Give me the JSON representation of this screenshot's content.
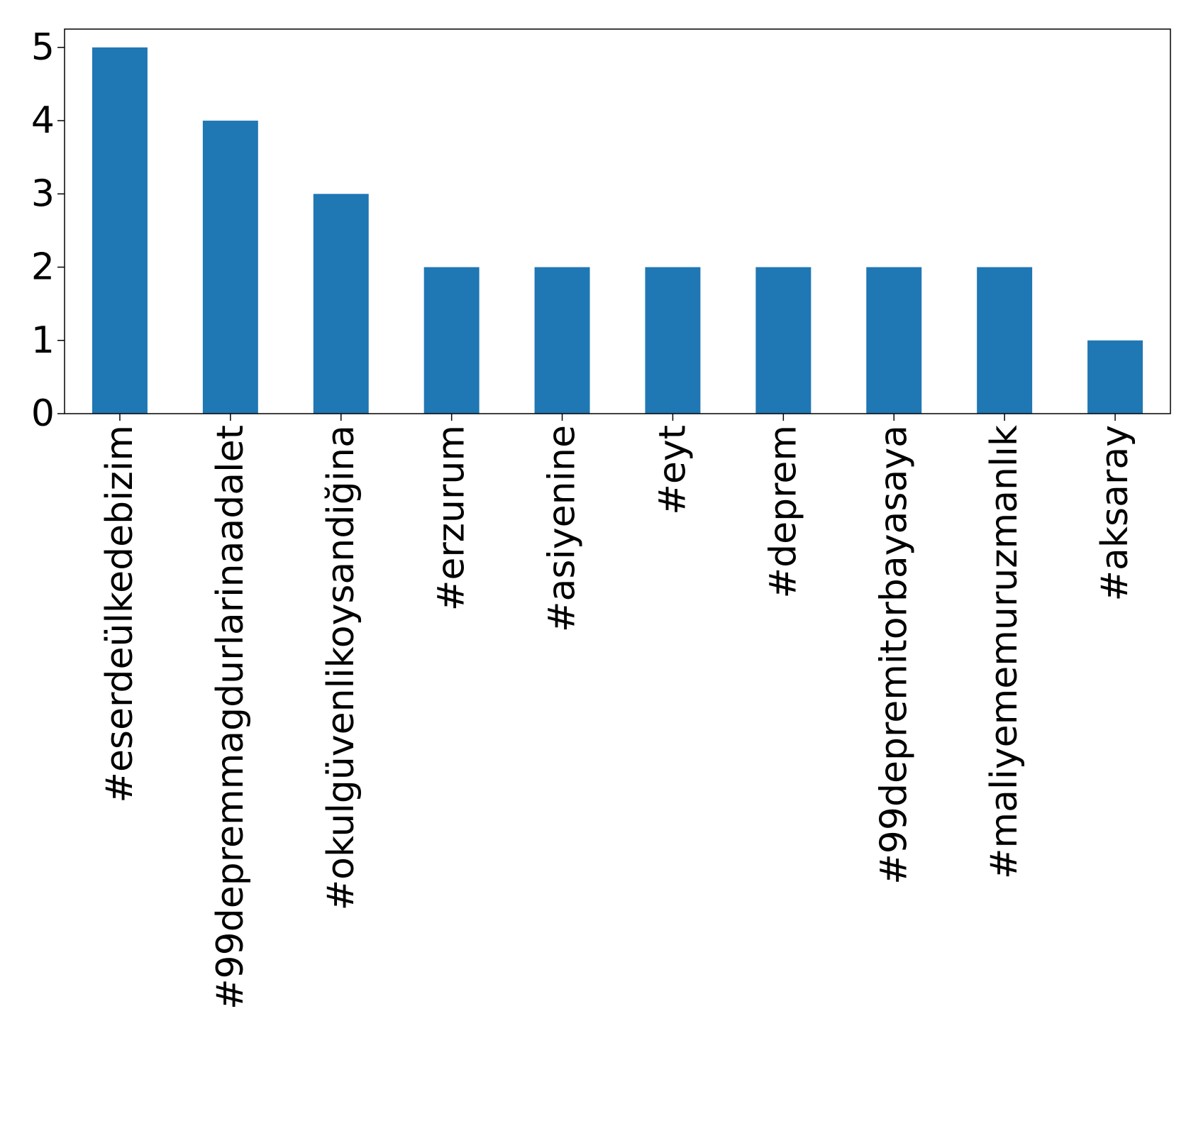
{
  "chart_data": {
    "type": "bar",
    "categories": [
      "#eserdeülkedebizim",
      "#99depremmagdurlarinaadalet",
      "#okulgüvenlikoysandiğina",
      "#erzurum",
      "#asiyenine",
      "#eyt",
      "#deprem",
      "#99depremitorbayasaya",
      "#maliyememuruzmanlık",
      "#aksaray"
    ],
    "values": [
      5,
      4,
      3,
      2,
      2,
      2,
      2,
      2,
      2,
      1
    ],
    "y_ticks": [
      "0",
      "1",
      "2",
      "3",
      "4",
      "5"
    ],
    "ylim": [
      0,
      5.25
    ],
    "title": "",
    "xlabel": "",
    "ylabel": "",
    "grid": false,
    "legend": "none",
    "bar_color": "#1f77b4"
  }
}
